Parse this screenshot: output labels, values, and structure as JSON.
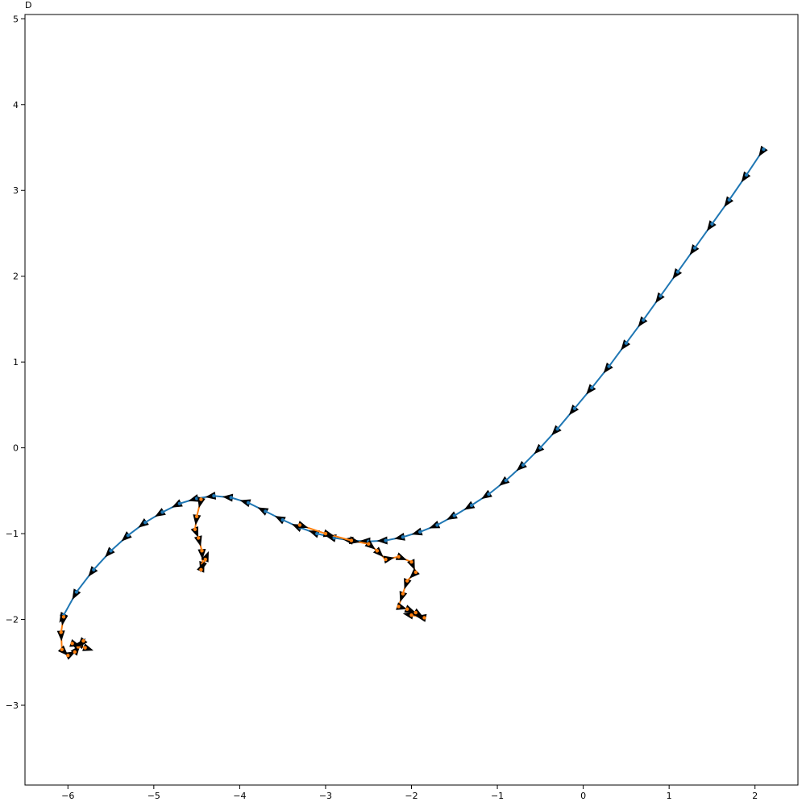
{
  "chart_data": {
    "type": "line",
    "title": "D",
    "xlabel": "",
    "ylabel": "",
    "xlim": [
      -6.5,
      2.5
    ],
    "ylim": [
      -3.93,
      5.05
    ],
    "grid": false,
    "legend": "none",
    "x_ticks": [
      -6,
      -5,
      -4,
      -3,
      -2,
      -1,
      0,
      1,
      2
    ],
    "y_ticks": [
      -3,
      -2,
      -1,
      0,
      1,
      2,
      3,
      4,
      5
    ],
    "x_tick_labels": [
      "−6",
      "−5",
      "−4",
      "−3",
      "−2",
      "−1",
      "0",
      "1",
      "2"
    ],
    "y_tick_labels": [
      "−3",
      "−2",
      "−1",
      "0",
      "1",
      "2",
      "3",
      "4",
      "5"
    ],
    "colors": {
      "series_blue": "#1f77b4",
      "series_orange": "#ff7f0e",
      "arrows": "#000000"
    },
    "series": [
      {
        "values": [
          [
            2.1,
            3.48
          ],
          [
            1.9,
            3.18
          ],
          [
            1.7,
            2.89
          ],
          [
            1.5,
            2.61
          ],
          [
            1.3,
            2.33
          ],
          [
            1.1,
            2.05
          ],
          [
            0.9,
            1.77
          ],
          [
            0.7,
            1.49
          ],
          [
            0.5,
            1.22
          ],
          [
            0.3,
            0.95
          ],
          [
            0.1,
            0.7
          ],
          [
            -0.1,
            0.46
          ],
          [
            -0.3,
            0.22
          ],
          [
            -0.5,
            0.0
          ],
          [
            -0.7,
            -0.2
          ],
          [
            -0.9,
            -0.38
          ],
          [
            -1.1,
            -0.54
          ],
          [
            -1.3,
            -0.67
          ],
          [
            -1.5,
            -0.79
          ],
          [
            -1.7,
            -0.9
          ],
          [
            -1.9,
            -0.98
          ],
          [
            -2.1,
            -1.04
          ],
          [
            -2.3,
            -1.08
          ],
          [
            -2.5,
            -1.09
          ],
          [
            -2.7,
            -1.08
          ],
          [
            -2.9,
            -1.05
          ],
          [
            -3.1,
            -1.0
          ],
          [
            -3.3,
            -0.93
          ],
          [
            -3.5,
            -0.84
          ],
          [
            -3.7,
            -0.74
          ],
          [
            -3.9,
            -0.64
          ],
          [
            -4.1,
            -0.58
          ],
          [
            -4.3,
            -0.56
          ],
          [
            -4.5,
            -0.59
          ],
          [
            -4.7,
            -0.65
          ],
          [
            -4.9,
            -0.75
          ],
          [
            -5.1,
            -0.87
          ],
          [
            -5.3,
            -1.02
          ],
          [
            -5.5,
            -1.2
          ],
          [
            -5.7,
            -1.42
          ],
          [
            -5.9,
            -1.68
          ],
          [
            -6.05,
            -1.95
          ]
        ]
      },
      {
        "values": [
          [
            -6.05,
            -1.97
          ],
          [
            -6.08,
            -2.15
          ],
          [
            -6.07,
            -2.35
          ],
          [
            -6.0,
            -2.42
          ],
          [
            -5.92,
            -2.38
          ],
          [
            -5.86,
            -2.3
          ],
          [
            -5.82,
            -2.25
          ],
          [
            -5.88,
            -2.32
          ],
          [
            -5.95,
            -2.28
          ],
          [
            -5.8,
            -2.33
          ]
        ]
      },
      {
        "values": [
          [
            -4.45,
            -0.6
          ],
          [
            -4.5,
            -0.8
          ],
          [
            -4.52,
            -0.95
          ],
          [
            -4.48,
            -1.05
          ],
          [
            -4.44,
            -1.2
          ],
          [
            -4.43,
            -1.35
          ],
          [
            -4.45,
            -1.42
          ],
          [
            -4.4,
            -1.3
          ]
        ]
      },
      {
        "values": [
          [
            -3.3,
            -0.9
          ],
          [
            -3.0,
            -1.0
          ],
          [
            -2.7,
            -1.08
          ],
          [
            -2.5,
            -1.12
          ],
          [
            -2.4,
            -1.2
          ],
          [
            -2.3,
            -1.3
          ],
          [
            -2.15,
            -1.27
          ],
          [
            -2.0,
            -1.33
          ],
          [
            -1.95,
            -1.45
          ],
          [
            -2.05,
            -1.55
          ],
          [
            -2.1,
            -1.7
          ],
          [
            -2.15,
            -1.85
          ],
          [
            -2.05,
            -1.88
          ],
          [
            -1.95,
            -1.92
          ],
          [
            -1.85,
            -1.98
          ],
          [
            -2.0,
            -1.95
          ]
        ]
      }
    ]
  }
}
